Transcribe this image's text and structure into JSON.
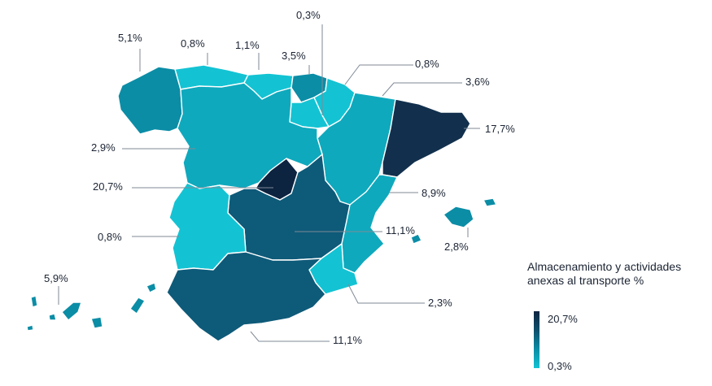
{
  "legend": {
    "title": "Almacenamiento y actividades anexas al transporte %",
    "max_label": "20,7%",
    "min_label": "0,3%",
    "colors": {
      "max": "#0d2440",
      "high": "#0e4f6c",
      "mid": "#0b8da6",
      "low": "#13c3d3"
    }
  },
  "regions": {
    "galicia": {
      "value": "5,1%"
    },
    "asturias": {
      "value": "0,8%"
    },
    "cantabria": {
      "value": "1,1%"
    },
    "pais_vasco": {
      "value": "3,5%"
    },
    "la_rioja": {
      "value": "0,3%"
    },
    "navarra": {
      "value": "0,8%"
    },
    "aragon": {
      "value": "3,6%"
    },
    "cataluna": {
      "value": "17,7%"
    },
    "castilla_leon": {
      "value": "2,9%"
    },
    "madrid": {
      "value": "20,7%"
    },
    "comunidad_valenciana": {
      "value": "8,9%"
    },
    "castilla_la_mancha": {
      "value": "11,1%"
    },
    "extremadura": {
      "value": "0,8%"
    },
    "baleares": {
      "value": "2,8%"
    },
    "murcia": {
      "value": "2,3%"
    },
    "andalucia": {
      "value": "11,1%"
    },
    "canarias": {
      "value": "5,9%"
    }
  }
}
